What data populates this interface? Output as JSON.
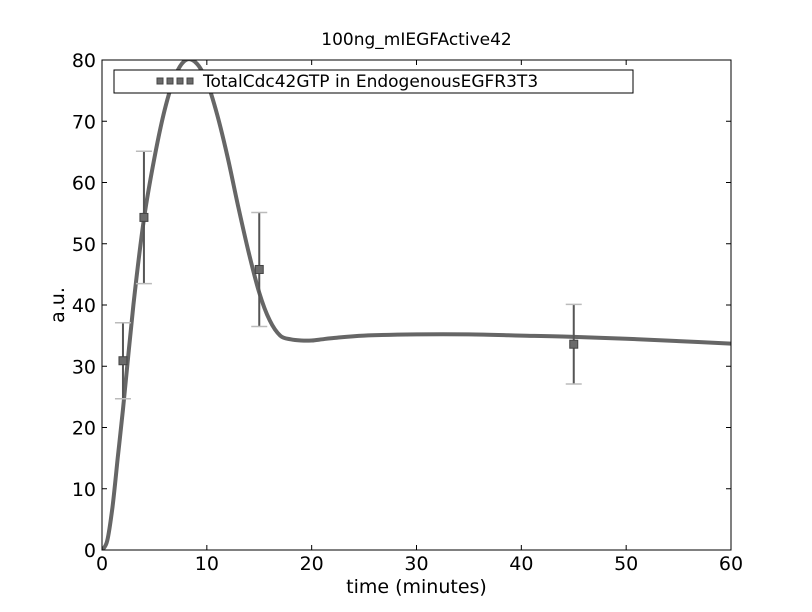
{
  "chart_data": {
    "type": "line",
    "title": "100ng_mIEGFActive42",
    "xlabel": "time (minutes)",
    "ylabel": "a.u.",
    "xlim": [
      0,
      60
    ],
    "ylim": [
      0,
      80
    ],
    "xticks": [
      0,
      10,
      20,
      30,
      40,
      50,
      60
    ],
    "yticks": [
      0,
      10,
      20,
      30,
      40,
      50,
      60,
      70,
      80
    ],
    "xtick_labels": [
      "0",
      "10",
      "20",
      "30",
      "40",
      "50",
      "60"
    ],
    "ytick_labels": [
      "0",
      "10",
      "20",
      "30",
      "40",
      "50",
      "60",
      "70",
      "80"
    ],
    "grid": false,
    "legend_position": "top",
    "series": [
      {
        "name": "TotalCdc42GTP in EndogenousEGFR3T3",
        "kind": "errorbar",
        "marker": "square",
        "color": "#555555",
        "x": [
          2,
          4,
          15,
          45
        ],
        "y": [
          30.9,
          54.3,
          45.8,
          33.6
        ],
        "yerr": [
          6.2,
          10.8,
          9.3,
          6.5
        ]
      },
      {
        "name": "",
        "kind": "line",
        "color": "#666666",
        "x": [
          0,
          0.5,
          1,
          1.5,
          2,
          3,
          4,
          5,
          6,
          7,
          8,
          9,
          10,
          11,
          12,
          13,
          14,
          15,
          16,
          17,
          18,
          19,
          20,
          21,
          22,
          25,
          30,
          35,
          40,
          45,
          50,
          55,
          60
        ],
        "y": [
          0,
          1.5,
          7,
          15,
          23,
          40,
          54,
          64,
          72,
          77.5,
          80,
          79.5,
          76.5,
          71,
          64,
          56,
          48.5,
          42,
          37.5,
          35,
          34.4,
          34.2,
          34.2,
          34.4,
          34.6,
          35,
          35.2,
          35.2,
          35,
          34.8,
          34.5,
          34.1,
          33.7
        ]
      }
    ]
  }
}
